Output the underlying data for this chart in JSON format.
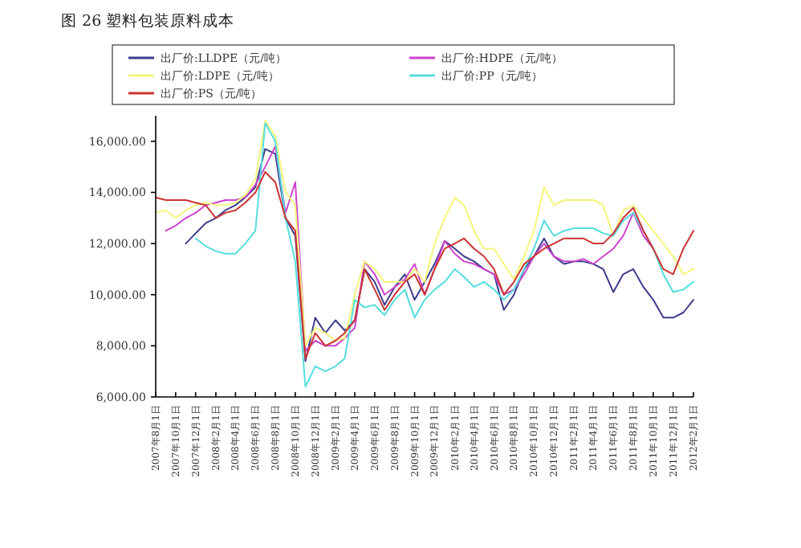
{
  "chart_data": {
    "type": "line",
    "title": "图 26 塑料包装原料成本",
    "xlim": [
      "2007-08-01",
      "2012-02-01"
    ],
    "xticks": [
      {
        "value": "2007-08-01",
        "label": "2007年8月1日"
      },
      {
        "value": "2007-10-01",
        "label": "2007年10月1日"
      },
      {
        "value": "2007-12-01",
        "label": "2007年12月1日"
      },
      {
        "value": "2008-02-01",
        "label": "2008年2月1日"
      },
      {
        "value": "2008-04-01",
        "label": "2008年4月1日"
      },
      {
        "value": "2008-06-01",
        "label": "2008年6月1日"
      },
      {
        "value": "2008-08-01",
        "label": "2008年8月1日"
      },
      {
        "value": "2008-10-01",
        "label": "2008年10月1日"
      },
      {
        "value": "2008-12-01",
        "label": "2008年12月1日"
      },
      {
        "value": "2009-02-01",
        "label": "2009年2月1日"
      },
      {
        "value": "2009-04-01",
        "label": "2009年4月1日"
      },
      {
        "value": "2009-06-01",
        "label": "2009年6月1日"
      },
      {
        "value": "2009-08-01",
        "label": "2009年8月1日"
      },
      {
        "value": "2009-10-01",
        "label": "2009年10月1日"
      },
      {
        "value": "2009-12-01",
        "label": "2009年12月1日"
      },
      {
        "value": "2010-02-01",
        "label": "2010年2月1日"
      },
      {
        "value": "2010-04-01",
        "label": "2010年4月1日"
      },
      {
        "value": "2010-06-01",
        "label": "2010年6月1日"
      },
      {
        "value": "2010-08-01",
        "label": "2010年8月1日"
      },
      {
        "value": "2010-10-01",
        "label": "2010年10月1日"
      },
      {
        "value": "2010-12-01",
        "label": "2010年12月1日"
      },
      {
        "value": "2011-02-01",
        "label": "2011年2月1日"
      },
      {
        "value": "2011-04-01",
        "label": "2011年4月1日"
      },
      {
        "value": "2011-06-01",
        "label": "2011年6月1日"
      },
      {
        "value": "2011-08-01",
        "label": "2011年8月1日"
      },
      {
        "value": "2011-10-01",
        "label": "2011年10月1日"
      },
      {
        "value": "2011-12-01",
        "label": "2011年12月1日"
      },
      {
        "value": "2012-02-01",
        "label": "2012年2月1日"
      }
    ],
    "ylim": [
      6000,
      17000
    ],
    "yticks": [
      {
        "value": 6000,
        "label": "6,000.00"
      },
      {
        "value": 8000,
        "label": "8,000.00"
      },
      {
        "value": 10000,
        "label": "10,000.00"
      },
      {
        "value": 12000,
        "label": "12,000.00"
      },
      {
        "value": 14000,
        "label": "14,000.00"
      },
      {
        "value": 16000,
        "label": "16,000.00"
      }
    ],
    "grid": false,
    "legend": "top",
    "marker": "none",
    "line_style": "solid",
    "series": [
      {
        "name": "出厂价:LLDPE（元/吨）",
        "color": "#3c3c8c",
        "x": [
          "2007-11",
          "2007-12",
          "2008-01",
          "2008-02",
          "2008-03",
          "2008-04",
          "2008-05",
          "2008-06",
          "2008-07",
          "2008-08",
          "2008-09",
          "2008-10",
          "2008-11",
          "2008-12",
          "2009-01",
          "2009-02",
          "2009-03",
          "2009-04",
          "2009-05",
          "2009-06",
          "2009-07",
          "2009-08",
          "2009-09",
          "2009-10",
          "2009-11",
          "2009-12",
          "2010-01",
          "2010-02",
          "2010-03",
          "2010-04",
          "2010-05",
          "2010-06",
          "2010-07",
          "2010-08",
          "2010-09",
          "2010-10",
          "2010-11",
          "2010-12",
          "2011-01",
          "2011-02",
          "2011-03",
          "2011-04",
          "2011-05",
          "2011-06",
          "2011-07",
          "2011-08",
          "2011-09",
          "2011-10",
          "2011-11",
          "2011-12",
          "2012-01",
          "2012-02"
        ],
        "values": [
          12000,
          12400,
          12800,
          13000,
          13300,
          13500,
          13800,
          14200,
          15700,
          15500,
          13000,
          12300,
          7400,
          9100,
          8500,
          9000,
          8600,
          9000,
          11000,
          10500,
          9600,
          10300,
          10800,
          9800,
          10500,
          11200,
          12100,
          11800,
          11500,
          11300,
          11000,
          10800,
          9400,
          10000,
          11000,
          11500,
          12200,
          11500,
          11200,
          11300,
          11300,
          11200,
          11000,
          10100,
          10800,
          11000,
          10300,
          9800,
          9100,
          9100,
          9300,
          9800
        ]
      },
      {
        "name": "出厂价:HDPE（元/吨）",
        "color": "#cc44cc",
        "x": [
          "2007-09",
          "2007-10",
          "2007-11",
          "2007-12",
          "2008-01",
          "2008-02",
          "2008-03",
          "2008-04",
          "2008-05",
          "2008-06",
          "2008-07",
          "2008-08",
          "2008-09",
          "2008-10",
          "2008-11",
          "2008-12",
          "2009-01",
          "2009-02",
          "2009-03",
          "2009-04",
          "2009-05",
          "2009-06",
          "2009-07",
          "2009-08",
          "2009-09",
          "2009-10",
          "2009-11",
          "2009-12",
          "2010-01",
          "2010-02",
          "2010-03",
          "2010-04",
          "2010-05",
          "2010-06",
          "2010-07",
          "2010-08",
          "2010-09",
          "2010-10",
          "2010-11",
          "2010-12",
          "2011-01",
          "2011-02",
          "2011-03",
          "2011-04",
          "2011-05",
          "2011-06",
          "2011-07",
          "2011-08",
          "2011-09",
          "2011-10"
        ],
        "values": [
          12500,
          12700,
          13000,
          13200,
          13500,
          13600,
          13700,
          13700,
          13800,
          14300,
          15000,
          15800,
          13200,
          14400,
          7800,
          8200,
          8000,
          8000,
          8300,
          8700,
          11300,
          10800,
          10000,
          10300,
          10600,
          11200,
          10000,
          11000,
          12100,
          11600,
          11300,
          11200,
          11000,
          10800,
          10000,
          10200,
          10800,
          11500,
          12000,
          11500,
          11300,
          11300,
          11400,
          11200,
          11500,
          11800,
          12300,
          13200,
          12300,
          11800
        ]
      },
      {
        "name": "出厂价:LDPE（元/吨）",
        "color": "#f5f57a",
        "x": [
          "2007-08",
          "2007-09",
          "2007-10",
          "2007-11",
          "2007-12",
          "2008-01",
          "2008-02",
          "2008-03",
          "2008-04",
          "2008-05",
          "2008-06",
          "2008-07",
          "2008-08",
          "2008-09",
          "2008-10",
          "2008-11",
          "2008-12",
          "2009-01",
          "2009-02",
          "2009-03",
          "2009-04",
          "2009-05",
          "2009-06",
          "2009-07",
          "2009-08",
          "2009-09",
          "2009-10",
          "2009-11",
          "2009-12",
          "2010-01",
          "2010-02",
          "2010-03",
          "2010-04",
          "2010-05",
          "2010-06",
          "2010-07",
          "2010-08",
          "2010-09",
          "2010-10",
          "2010-11",
          "2010-12",
          "2011-01",
          "2011-02",
          "2011-03",
          "2011-04",
          "2011-05",
          "2011-06",
          "2011-07",
          "2011-08",
          "2011-09",
          "2011-10",
          "2011-11",
          "2011-12",
          "2012-01",
          "2012-02"
        ],
        "values": [
          13200,
          13300,
          13000,
          13300,
          13500,
          13600,
          13500,
          13500,
          13600,
          13900,
          14500,
          16800,
          16200,
          14000,
          13500,
          8000,
          8700,
          8500,
          8200,
          8300,
          10000,
          11300,
          11000,
          10500,
          10500,
          10500,
          11000,
          10500,
          12000,
          13000,
          13800,
          13500,
          12500,
          11800,
          11800,
          11200,
          10600,
          11500,
          12500,
          14200,
          13500,
          13700,
          13700,
          13700,
          13700,
          13500,
          12300,
          13300,
          13500,
          13000,
          12500,
          12000,
          11500,
          10800,
          11000
        ]
      },
      {
        "name": "出厂价:PP（元/吨）",
        "color": "#55dddd",
        "x": [
          "2007-12",
          "2008-01",
          "2008-02",
          "2008-03",
          "2008-04",
          "2008-05",
          "2008-06",
          "2008-07",
          "2008-08",
          "2008-09",
          "2008-10",
          "2008-11",
          "2008-12",
          "2009-01",
          "2009-02",
          "2009-03",
          "2009-04",
          "2009-05",
          "2009-06",
          "2009-07",
          "2009-08",
          "2009-09",
          "2009-10",
          "2009-11",
          "2009-12",
          "2010-01",
          "2010-02",
          "2010-03",
          "2010-04",
          "2010-05",
          "2010-06",
          "2010-07",
          "2010-08",
          "2010-09",
          "2010-10",
          "2010-11",
          "2010-12",
          "2011-01",
          "2011-02",
          "2011-03",
          "2011-04",
          "2011-05",
          "2011-06",
          "2011-07",
          "2011-08",
          "2011-09",
          "2011-10",
          "2011-11",
          "2011-12",
          "2012-01",
          "2012-02"
        ],
        "values": [
          12200,
          11900,
          11700,
          11600,
          11600,
          12000,
          12500,
          16700,
          16000,
          13000,
          11300,
          6400,
          7200,
          7000,
          7200,
          7500,
          9800,
          9500,
          9600,
          9200,
          9800,
          10200,
          9100,
          9800,
          10200,
          10500,
          11000,
          10700,
          10300,
          10500,
          10200,
          9800,
          10200,
          11000,
          11800,
          12900,
          12300,
          12500,
          12600,
          12600,
          12600,
          12400,
          12300,
          12900,
          13200,
          12500,
          11800,
          10800,
          10100,
          10200,
          10500
        ]
      },
      {
        "name": "出厂价:PS（元/吨）",
        "color": "#cc3333",
        "x": [
          "2007-08",
          "2007-09",
          "2007-10",
          "2007-11",
          "2007-12",
          "2008-01",
          "2008-02",
          "2008-03",
          "2008-04",
          "2008-05",
          "2008-06",
          "2008-07",
          "2008-08",
          "2008-09",
          "2008-10",
          "2008-11",
          "2008-12",
          "2009-01",
          "2009-02",
          "2009-03",
          "2009-04",
          "2009-05",
          "2009-06",
          "2009-07",
          "2009-08",
          "2009-09",
          "2009-10",
          "2009-11",
          "2009-12",
          "2010-01",
          "2010-02",
          "2010-03",
          "2010-04",
          "2010-05",
          "2010-06",
          "2010-07",
          "2010-08",
          "2010-09",
          "2010-10",
          "2010-11",
          "2010-12",
          "2011-01",
          "2011-02",
          "2011-03",
          "2011-04",
          "2011-05",
          "2011-06",
          "2011-07",
          "2011-08",
          "2011-09",
          "2011-10",
          "2011-11",
          "2011-12",
          "2012-01",
          "2012-02"
        ],
        "values": [
          13800,
          13700,
          13700,
          13700,
          13600,
          13500,
          13000,
          13200,
          13300,
          13600,
          14000,
          14800,
          14400,
          13000,
          12500,
          7500,
          8500,
          8000,
          8200,
          8500,
          9000,
          11000,
          10200,
          9400,
          10000,
          10500,
          10800,
          10000,
          11000,
          11800,
          12000,
          12200,
          11800,
          11500,
          11000,
          10000,
          10500,
          11200,
          11500,
          11800,
          12000,
          12200,
          12200,
          12200,
          12000,
          12000,
          12400,
          13000,
          13400,
          12500,
          11800,
          11000,
          10800,
          11800,
          12500
        ]
      }
    ]
  }
}
